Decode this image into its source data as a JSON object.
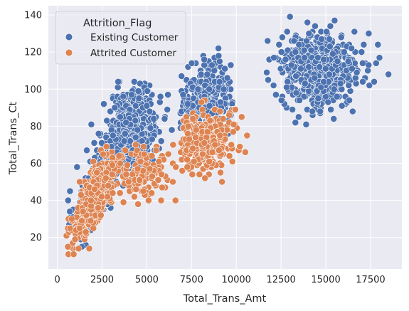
{
  "chart_data": {
    "type": "scatter",
    "xlabel": "Total_Trans_Amt",
    "ylabel": "Total_Trans_Ct",
    "xlim": [
      -500,
      19250
    ],
    "ylim": [
      3,
      145
    ],
    "xticks": [
      0,
      2500,
      5000,
      7500,
      10000,
      12500,
      15000,
      17500
    ],
    "xtick_labels": [
      "0",
      "2500",
      "5000",
      "7500",
      "10000",
      "12500",
      "15000",
      "17500"
    ],
    "yticks": [
      20,
      40,
      60,
      80,
      100,
      120,
      140
    ],
    "ytick_labels": [
      "20",
      "40",
      "60",
      "80",
      "100",
      "120",
      "140"
    ],
    "grid": true,
    "background": "#eaeaf2",
    "legend": {
      "title": "Attrition_Flag",
      "placement": "top-left"
    },
    "series": [
      {
        "name": "Existing Customer",
        "color": "#4c72b0",
        "clusters": [
          {
            "x_mean": 2400,
            "x_sd": 700,
            "y_mean": 52,
            "y_sd": 14,
            "n": 420,
            "x_min": 600,
            "x_max": 5200,
            "y_min": 12,
            "y_max": 95,
            "corr": 0.75
          },
          {
            "x_mean": 4300,
            "x_sd": 650,
            "y_mean": 80,
            "y_sd": 11,
            "n": 520,
            "x_min": 2600,
            "x_max": 6200,
            "y_min": 45,
            "y_max": 104,
            "corr": 0.2
          },
          {
            "x_mean": 8300,
            "x_sd": 700,
            "y_mean": 95,
            "y_sd": 9,
            "n": 300,
            "x_min": 6800,
            "x_max": 10000,
            "y_min": 70,
            "y_max": 122,
            "corr": 0.1
          },
          {
            "x_mean": 14600,
            "x_sd": 1050,
            "y_mean": 110,
            "y_sd": 10,
            "n": 650,
            "x_min": 11600,
            "x_max": 18500,
            "y_min": 81,
            "y_max": 139,
            "corr": 0.0
          }
        ],
        "points": [
          {
            "x": 1100,
            "y": 58
          },
          {
            "x": 1900,
            "y": 81
          },
          {
            "x": 2600,
            "y": 92
          },
          {
            "x": 3400,
            "y": 104
          },
          {
            "x": 6400,
            "y": 78
          },
          {
            "x": 9000,
            "y": 122
          },
          {
            "x": 13000,
            "y": 139
          },
          {
            "x": 11700,
            "y": 109
          },
          {
            "x": 18500,
            "y": 108
          },
          {
            "x": 17700,
            "y": 104
          },
          {
            "x": 17400,
            "y": 130
          },
          {
            "x": 13300,
            "y": 82
          },
          {
            "x": 13900,
            "y": 81
          },
          {
            "x": 16500,
            "y": 88
          },
          {
            "x": 9500,
            "y": 106
          },
          {
            "x": 9300,
            "y": 100
          },
          {
            "x": 14400,
            "y": 134
          },
          {
            "x": 18000,
            "y": 117
          },
          {
            "x": 12100,
            "y": 117
          },
          {
            "x": 16600,
            "y": 131
          }
        ]
      },
      {
        "name": "Attrited Customer",
        "color": "#dd8452",
        "clusters": [
          {
            "x_mean": 2100,
            "x_sd": 650,
            "y_mean": 42,
            "y_sd": 11,
            "n": 480,
            "x_min": 500,
            "x_max": 4500,
            "y_min": 10,
            "y_max": 72,
            "corr": 0.75
          },
          {
            "x_mean": 4800,
            "x_sd": 700,
            "y_mean": 55,
            "y_sd": 7,
            "n": 120,
            "x_min": 3600,
            "x_max": 7000,
            "y_min": 38,
            "y_max": 77,
            "corr": 0.3
          },
          {
            "x_mean": 8100,
            "x_sd": 800,
            "y_mean": 72,
            "y_sd": 8,
            "n": 330,
            "x_min": 6900,
            "x_max": 10500,
            "y_min": 50,
            "y_max": 97,
            "corr": 0.05
          }
        ],
        "points": [
          {
            "x": 5800,
            "y": 40
          },
          {
            "x": 6600,
            "y": 40
          },
          {
            "x": 10300,
            "y": 85
          },
          {
            "x": 10600,
            "y": 75
          },
          {
            "x": 9200,
            "y": 50
          },
          {
            "x": 6200,
            "y": 65
          },
          {
            "x": 5100,
            "y": 40
          },
          {
            "x": 10500,
            "y": 66
          }
        ]
      }
    ]
  }
}
